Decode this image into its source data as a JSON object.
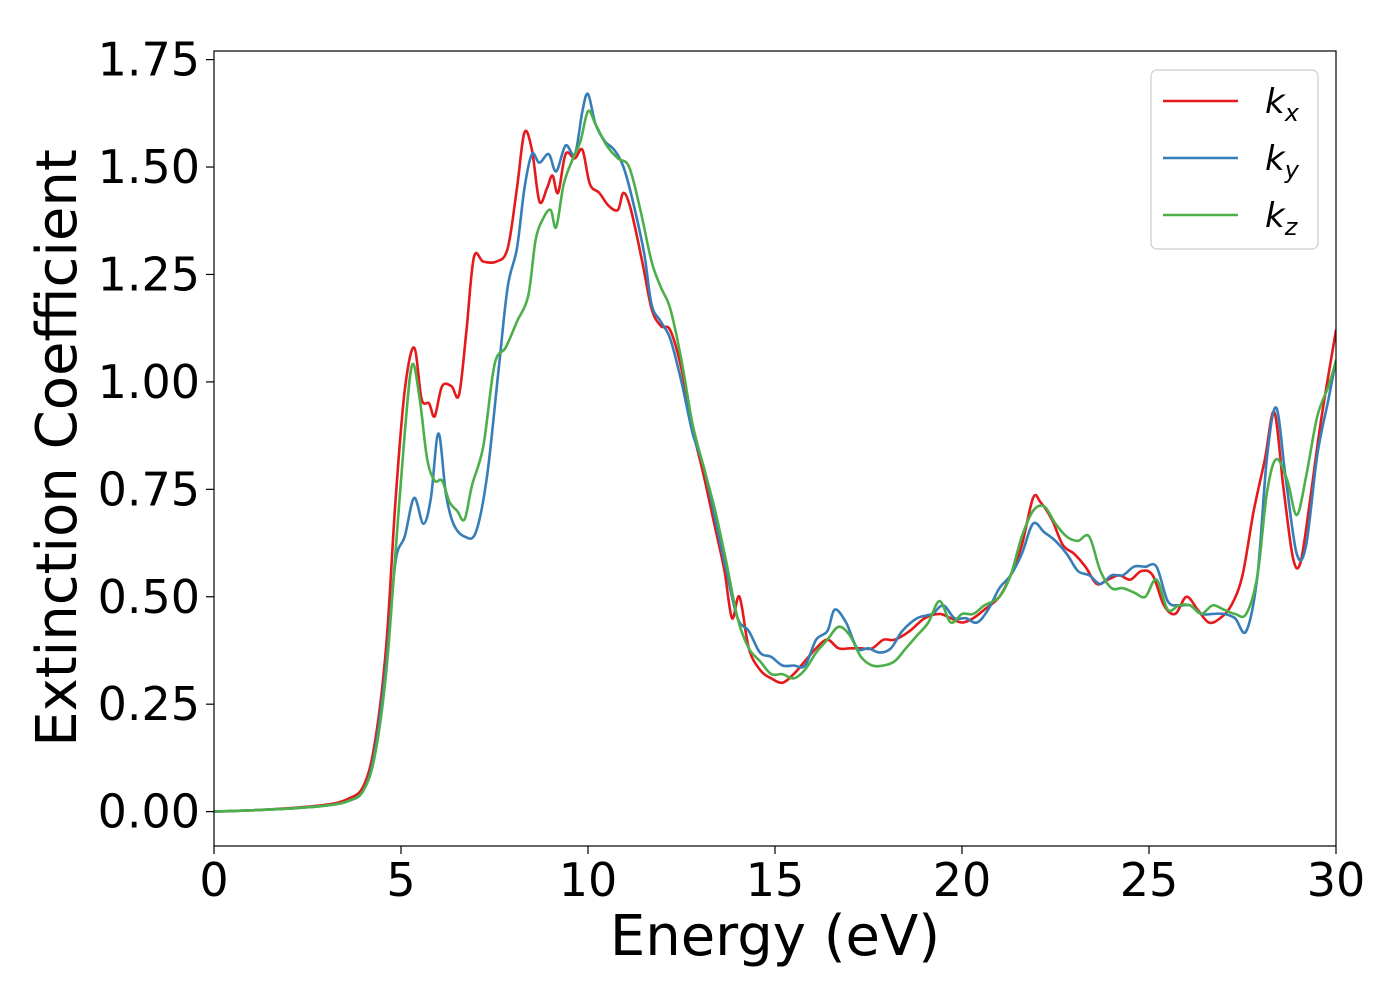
{
  "chart_data": {
    "type": "line",
    "title": "",
    "xlabel": "Energy (eV)",
    "ylabel": "Extinction Coefficient",
    "xlim": [
      0,
      30
    ],
    "ylim": [
      -0.08,
      1.77
    ],
    "xticks": [
      0,
      5,
      10,
      15,
      20,
      25,
      30
    ],
    "xtick_labels": [
      "0",
      "5",
      "10",
      "15",
      "20",
      "25",
      "30"
    ],
    "yticks": [
      0.0,
      0.25,
      0.5,
      0.75,
      1.0,
      1.25,
      1.5,
      1.75
    ],
    "ytick_labels": [
      "0.00",
      "0.25",
      "0.50",
      "0.75",
      "1.00",
      "1.25",
      "1.50",
      "1.75"
    ],
    "grid": false,
    "legend_position": "top-right",
    "series": [
      {
        "name": "k_x",
        "label_base": "k",
        "label_sub": "x",
        "color": "#e41a1c",
        "points": [
          [
            0,
            0
          ],
          [
            1,
            0.003
          ],
          [
            2,
            0.008
          ],
          [
            3,
            0.016
          ],
          [
            3.6,
            0.03
          ],
          [
            4,
            0.06
          ],
          [
            4.3,
            0.16
          ],
          [
            4.6,
            0.38
          ],
          [
            4.85,
            0.72
          ],
          [
            5.1,
            0.98
          ],
          [
            5.35,
            1.08
          ],
          [
            5.55,
            0.96
          ],
          [
            5.75,
            0.95
          ],
          [
            5.9,
            0.92
          ],
          [
            6.1,
            0.99
          ],
          [
            6.35,
            0.99
          ],
          [
            6.55,
            0.97
          ],
          [
            6.75,
            1.12
          ],
          [
            6.95,
            1.29
          ],
          [
            7.2,
            1.28
          ],
          [
            7.55,
            1.28
          ],
          [
            7.85,
            1.31
          ],
          [
            8.1,
            1.45
          ],
          [
            8.3,
            1.58
          ],
          [
            8.5,
            1.54
          ],
          [
            8.7,
            1.42
          ],
          [
            8.9,
            1.45
          ],
          [
            9.05,
            1.48
          ],
          [
            9.2,
            1.44
          ],
          [
            9.4,
            1.53
          ],
          [
            9.65,
            1.52
          ],
          [
            9.85,
            1.54
          ],
          [
            10.05,
            1.46
          ],
          [
            10.3,
            1.44
          ],
          [
            10.55,
            1.41
          ],
          [
            10.8,
            1.4
          ],
          [
            10.95,
            1.44
          ],
          [
            11.15,
            1.4
          ],
          [
            11.45,
            1.28
          ],
          [
            11.7,
            1.17
          ],
          [
            11.95,
            1.13
          ],
          [
            12.2,
            1.12
          ],
          [
            12.5,
            1.03
          ],
          [
            12.8,
            0.89
          ],
          [
            13.1,
            0.78
          ],
          [
            13.4,
            0.66
          ],
          [
            13.65,
            0.56
          ],
          [
            13.85,
            0.45
          ],
          [
            14.05,
            0.5
          ],
          [
            14.3,
            0.38
          ],
          [
            14.6,
            0.33
          ],
          [
            14.9,
            0.31
          ],
          [
            15.2,
            0.3
          ],
          [
            15.5,
            0.32
          ],
          [
            15.8,
            0.35
          ],
          [
            16.1,
            0.38
          ],
          [
            16.4,
            0.4
          ],
          [
            16.7,
            0.38
          ],
          [
            17.0,
            0.38
          ],
          [
            17.3,
            0.38
          ],
          [
            17.6,
            0.38
          ],
          [
            17.9,
            0.4
          ],
          [
            18.2,
            0.4
          ],
          [
            18.6,
            0.42
          ],
          [
            19.0,
            0.45
          ],
          [
            19.4,
            0.46
          ],
          [
            19.7,
            0.45
          ],
          [
            20.0,
            0.44
          ],
          [
            20.3,
            0.45
          ],
          [
            20.6,
            0.47
          ],
          [
            21.0,
            0.5
          ],
          [
            21.3,
            0.55
          ],
          [
            21.6,
            0.62
          ],
          [
            21.9,
            0.73
          ],
          [
            22.1,
            0.72
          ],
          [
            22.4,
            0.68
          ],
          [
            22.7,
            0.62
          ],
          [
            23.0,
            0.6
          ],
          [
            23.3,
            0.57
          ],
          [
            23.6,
            0.53
          ],
          [
            23.9,
            0.54
          ],
          [
            24.2,
            0.55
          ],
          [
            24.5,
            0.54
          ],
          [
            24.8,
            0.56
          ],
          [
            25.1,
            0.55
          ],
          [
            25.4,
            0.48
          ],
          [
            25.7,
            0.46
          ],
          [
            26.0,
            0.5
          ],
          [
            26.3,
            0.47
          ],
          [
            26.6,
            0.44
          ],
          [
            26.9,
            0.45
          ],
          [
            27.2,
            0.48
          ],
          [
            27.5,
            0.55
          ],
          [
            27.8,
            0.7
          ],
          [
            28.1,
            0.82
          ],
          [
            28.35,
            0.93
          ],
          [
            28.6,
            0.75
          ],
          [
            28.85,
            0.59
          ],
          [
            29.05,
            0.58
          ],
          [
            29.3,
            0.72
          ],
          [
            29.6,
            0.91
          ],
          [
            30,
            1.12
          ]
        ]
      },
      {
        "name": "k_y",
        "label_base": "k",
        "label_sub": "y",
        "color": "#377eb8",
        "points": [
          [
            0,
            0
          ],
          [
            1,
            0.003
          ],
          [
            2,
            0.007
          ],
          [
            3,
            0.014
          ],
          [
            3.6,
            0.025
          ],
          [
            4,
            0.05
          ],
          [
            4.3,
            0.14
          ],
          [
            4.6,
            0.34
          ],
          [
            4.85,
            0.58
          ],
          [
            5.1,
            0.64
          ],
          [
            5.35,
            0.73
          ],
          [
            5.6,
            0.67
          ],
          [
            5.8,
            0.73
          ],
          [
            6.0,
            0.88
          ],
          [
            6.2,
            0.74
          ],
          [
            6.4,
            0.67
          ],
          [
            6.7,
            0.64
          ],
          [
            7.0,
            0.65
          ],
          [
            7.3,
            0.78
          ],
          [
            7.6,
            1.02
          ],
          [
            7.85,
            1.22
          ],
          [
            8.1,
            1.31
          ],
          [
            8.3,
            1.45
          ],
          [
            8.5,
            1.53
          ],
          [
            8.7,
            1.51
          ],
          [
            8.95,
            1.53
          ],
          [
            9.15,
            1.49
          ],
          [
            9.4,
            1.55
          ],
          [
            9.65,
            1.53
          ],
          [
            9.85,
            1.63
          ],
          [
            10.0,
            1.67
          ],
          [
            10.2,
            1.6
          ],
          [
            10.45,
            1.56
          ],
          [
            10.7,
            1.54
          ],
          [
            10.95,
            1.5
          ],
          [
            11.2,
            1.42
          ],
          [
            11.5,
            1.3
          ],
          [
            11.7,
            1.18
          ],
          [
            11.95,
            1.14
          ],
          [
            12.2,
            1.1
          ],
          [
            12.5,
            1.0
          ],
          [
            12.8,
            0.88
          ],
          [
            13.1,
            0.8
          ],
          [
            13.4,
            0.68
          ],
          [
            13.7,
            0.56
          ],
          [
            14.0,
            0.45
          ],
          [
            14.3,
            0.42
          ],
          [
            14.6,
            0.37
          ],
          [
            14.9,
            0.36
          ],
          [
            15.2,
            0.34
          ],
          [
            15.5,
            0.34
          ],
          [
            15.8,
            0.34
          ],
          [
            16.1,
            0.4
          ],
          [
            16.4,
            0.42
          ],
          [
            16.6,
            0.47
          ],
          [
            16.9,
            0.44
          ],
          [
            17.2,
            0.38
          ],
          [
            17.5,
            0.38
          ],
          [
            17.8,
            0.37
          ],
          [
            18.1,
            0.38
          ],
          [
            18.4,
            0.42
          ],
          [
            18.8,
            0.45
          ],
          [
            19.2,
            0.46
          ],
          [
            19.5,
            0.48
          ],
          [
            19.8,
            0.45
          ],
          [
            20.1,
            0.45
          ],
          [
            20.4,
            0.44
          ],
          [
            20.7,
            0.47
          ],
          [
            21.0,
            0.52
          ],
          [
            21.3,
            0.55
          ],
          [
            21.6,
            0.6
          ],
          [
            21.9,
            0.67
          ],
          [
            22.2,
            0.65
          ],
          [
            22.5,
            0.63
          ],
          [
            22.8,
            0.6
          ],
          [
            23.1,
            0.56
          ],
          [
            23.4,
            0.55
          ],
          [
            23.7,
            0.53
          ],
          [
            24.0,
            0.55
          ],
          [
            24.3,
            0.55
          ],
          [
            24.6,
            0.57
          ],
          [
            24.9,
            0.57
          ],
          [
            25.2,
            0.57
          ],
          [
            25.5,
            0.49
          ],
          [
            25.8,
            0.48
          ],
          [
            26.1,
            0.48
          ],
          [
            26.4,
            0.46
          ],
          [
            26.7,
            0.46
          ],
          [
            27.0,
            0.46
          ],
          [
            27.3,
            0.45
          ],
          [
            27.6,
            0.42
          ],
          [
            27.9,
            0.55
          ],
          [
            28.15,
            0.82
          ],
          [
            28.4,
            0.94
          ],
          [
            28.65,
            0.78
          ],
          [
            28.95,
            0.6
          ],
          [
            29.2,
            0.62
          ],
          [
            29.5,
            0.83
          ],
          [
            29.8,
            0.96
          ],
          [
            30,
            1.05
          ]
        ]
      },
      {
        "name": "k_z",
        "label_base": "k",
        "label_sub": "z",
        "color": "#4daf4a",
        "points": [
          [
            0,
            0
          ],
          [
            1,
            0.003
          ],
          [
            2,
            0.007
          ],
          [
            3,
            0.014
          ],
          [
            3.6,
            0.025
          ],
          [
            4,
            0.05
          ],
          [
            4.3,
            0.13
          ],
          [
            4.6,
            0.32
          ],
          [
            4.85,
            0.6
          ],
          [
            5.1,
            0.88
          ],
          [
            5.3,
            1.04
          ],
          [
            5.5,
            0.96
          ],
          [
            5.7,
            0.82
          ],
          [
            5.9,
            0.77
          ],
          [
            6.1,
            0.77
          ],
          [
            6.3,
            0.72
          ],
          [
            6.5,
            0.7
          ],
          [
            6.7,
            0.68
          ],
          [
            6.9,
            0.76
          ],
          [
            7.2,
            0.85
          ],
          [
            7.5,
            1.04
          ],
          [
            7.8,
            1.08
          ],
          [
            8.1,
            1.14
          ],
          [
            8.4,
            1.2
          ],
          [
            8.6,
            1.33
          ],
          [
            8.8,
            1.38
          ],
          [
            9.0,
            1.4
          ],
          [
            9.15,
            1.36
          ],
          [
            9.35,
            1.46
          ],
          [
            9.6,
            1.52
          ],
          [
            9.8,
            1.56
          ],
          [
            10.0,
            1.63
          ],
          [
            10.2,
            1.6
          ],
          [
            10.5,
            1.55
          ],
          [
            10.8,
            1.52
          ],
          [
            11.1,
            1.5
          ],
          [
            11.4,
            1.4
          ],
          [
            11.7,
            1.28
          ],
          [
            11.95,
            1.22
          ],
          [
            12.2,
            1.17
          ],
          [
            12.5,
            1.05
          ],
          [
            12.8,
            0.9
          ],
          [
            13.1,
            0.8
          ],
          [
            13.4,
            0.7
          ],
          [
            13.7,
            0.58
          ],
          [
            14.0,
            0.45
          ],
          [
            14.3,
            0.38
          ],
          [
            14.6,
            0.35
          ],
          [
            14.9,
            0.32
          ],
          [
            15.2,
            0.32
          ],
          [
            15.5,
            0.31
          ],
          [
            15.8,
            0.33
          ],
          [
            16.1,
            0.37
          ],
          [
            16.4,
            0.4
          ],
          [
            16.7,
            0.43
          ],
          [
            17.0,
            0.41
          ],
          [
            17.3,
            0.36
          ],
          [
            17.6,
            0.34
          ],
          [
            17.9,
            0.34
          ],
          [
            18.2,
            0.35
          ],
          [
            18.5,
            0.38
          ],
          [
            18.8,
            0.41
          ],
          [
            19.1,
            0.44
          ],
          [
            19.4,
            0.49
          ],
          [
            19.7,
            0.44
          ],
          [
            20.0,
            0.46
          ],
          [
            20.3,
            0.46
          ],
          [
            20.6,
            0.48
          ],
          [
            21.0,
            0.5
          ],
          [
            21.3,
            0.55
          ],
          [
            21.6,
            0.64
          ],
          [
            21.9,
            0.7
          ],
          [
            22.2,
            0.71
          ],
          [
            22.5,
            0.67
          ],
          [
            22.8,
            0.64
          ],
          [
            23.1,
            0.63
          ],
          [
            23.4,
            0.64
          ],
          [
            23.7,
            0.56
          ],
          [
            24.0,
            0.52
          ],
          [
            24.3,
            0.52
          ],
          [
            24.6,
            0.51
          ],
          [
            24.9,
            0.5
          ],
          [
            25.2,
            0.54
          ],
          [
            25.5,
            0.47
          ],
          [
            25.8,
            0.48
          ],
          [
            26.1,
            0.48
          ],
          [
            26.4,
            0.46
          ],
          [
            26.7,
            0.48
          ],
          [
            27.0,
            0.47
          ],
          [
            27.3,
            0.46
          ],
          [
            27.6,
            0.46
          ],
          [
            27.9,
            0.55
          ],
          [
            28.15,
            0.74
          ],
          [
            28.4,
            0.82
          ],
          [
            28.7,
            0.77
          ],
          [
            28.95,
            0.69
          ],
          [
            29.2,
            0.78
          ],
          [
            29.5,
            0.92
          ],
          [
            29.8,
            0.99
          ],
          [
            30,
            1.05
          ]
        ]
      }
    ]
  }
}
